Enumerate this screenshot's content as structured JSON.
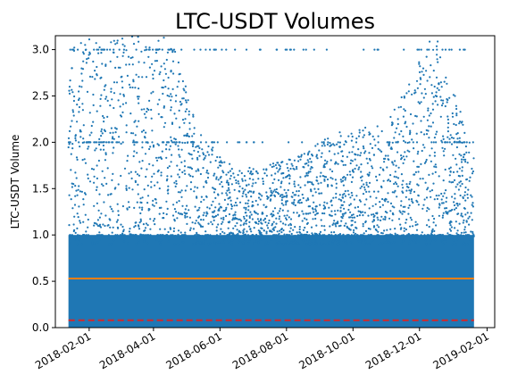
{
  "chart_data": {
    "type": "scatter",
    "title": "LTC-USDT Volumes",
    "xlabel": "",
    "ylabel": "LTC-USDT Volume",
    "x_axis_type": "date",
    "xlim": [
      "2018-01-01",
      "2019-02-08"
    ],
    "ylim": [
      0.0,
      3.15
    ],
    "xticks": [
      "2018-02-01",
      "2018-04-01",
      "2018-06-01",
      "2018-08-01",
      "2018-10-01",
      "2018-12-01",
      "2019-02-01"
    ],
    "yticks": [
      0.0,
      0.5,
      1.0,
      1.5,
      2.0,
      2.5,
      3.0
    ],
    "ytick_labels": [
      "0.0",
      "0.5",
      "1.0",
      "1.5",
      "2.0",
      "2.5",
      "3.0"
    ],
    "grid": false,
    "legend": false,
    "series": [
      {
        "kind": "scatter",
        "color": "#1f77b4",
        "x_range": [
          "2018-01-13",
          "2019-01-20"
        ],
        "density_profile": [
          {
            "x": "2018-01-13",
            "y_max": 3.15
          },
          {
            "x": "2018-02-15",
            "y_max": 3.15
          },
          {
            "x": "2018-03-15",
            "y_max": 2.9
          },
          {
            "x": "2018-04-15",
            "y_max": 2.6
          },
          {
            "x": "2018-05-15",
            "y_max": 1.5
          },
          {
            "x": "2018-06-15",
            "y_max": 1.1
          },
          {
            "x": "2018-08-01",
            "y_max": 1.2
          },
          {
            "x": "2018-09-15",
            "y_max": 1.5
          },
          {
            "x": "2018-11-01",
            "y_max": 1.6
          },
          {
            "x": "2018-12-15",
            "y_max": 2.6
          },
          {
            "x": "2019-01-20",
            "y_max": 1.3
          }
        ]
      },
      {
        "kind": "hline",
        "style": "solid",
        "color": "#ff7f0e",
        "y": 0.53,
        "x_range": [
          "2018-01-13",
          "2019-01-20"
        ]
      },
      {
        "kind": "hline",
        "style": "dashed",
        "color": "#d62728",
        "y": 0.08,
        "x_range": [
          "2018-01-13",
          "2019-01-20"
        ]
      }
    ]
  }
}
